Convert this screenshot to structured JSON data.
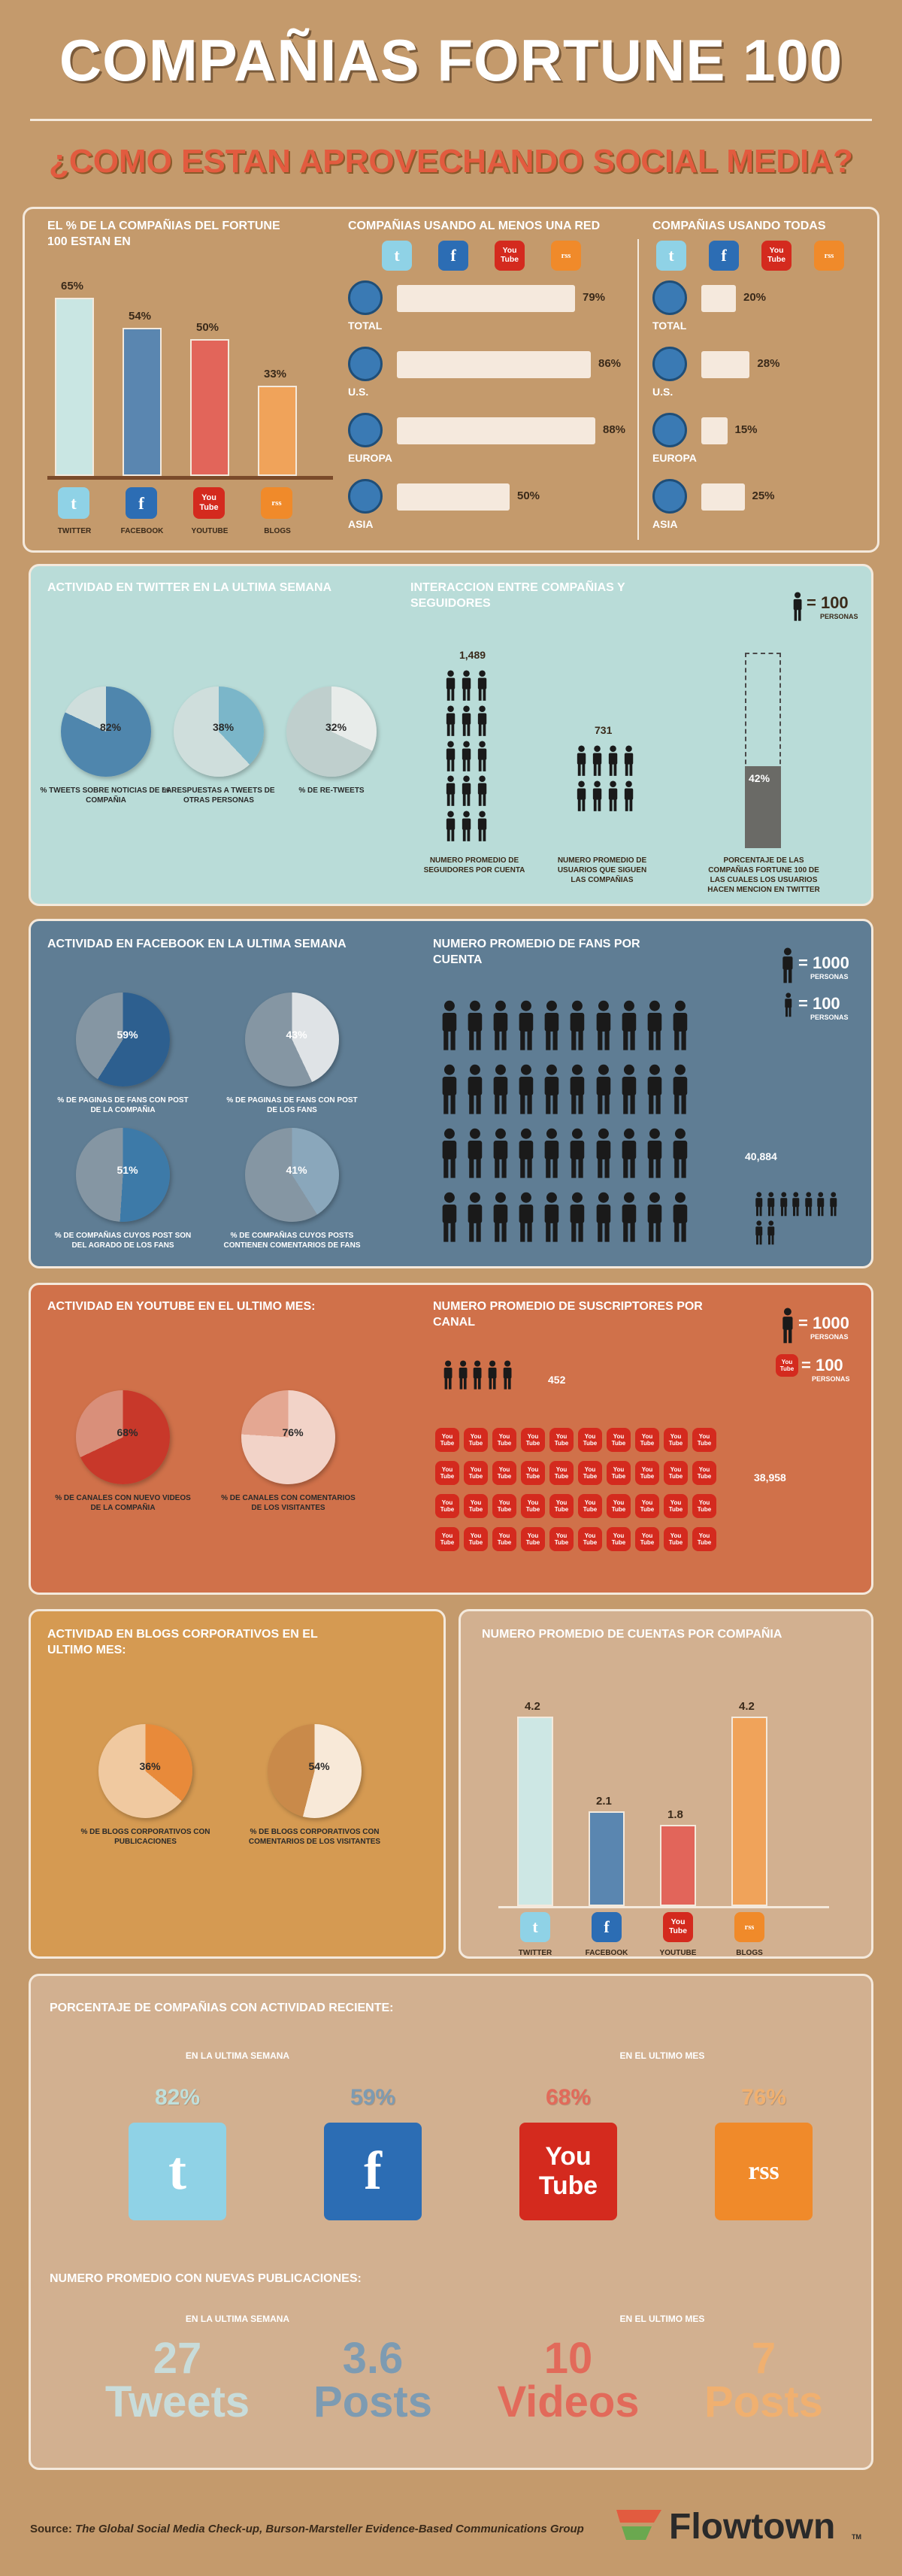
{
  "header": {
    "title": "COMPAÑIAS FORTUNE 100",
    "subtitle": "¿COMO ESTAN APROVECHANDO SOCIAL MEDIA?"
  },
  "colors": {
    "twitter": "#8fd2e6",
    "facebook": "#2c6db4",
    "youtube": "#d42a1e",
    "blogs": "#f08a2a",
    "bg": "#c49a6c"
  },
  "s1": {
    "bar_title": "EL % DE LA COMPAÑIAS DEL FORTUNE 100 ESTAN EN",
    "chart_data": {
      "type": "bar",
      "categories": [
        "TWITTER",
        "FACEBOOK",
        "YOUTUBE",
        "BLOGS"
      ],
      "values": [
        65,
        54,
        50,
        33
      ],
      "labels": [
        "65%",
        "54%",
        "50%",
        "33%"
      ],
      "ylim": [
        0,
        70
      ]
    },
    "mid_title": "COMPAÑIAS USANDO AL MENOS UNA RED",
    "right_title": "COMPAÑIAS USANDO TODAS",
    "regions": [
      "TOTAL",
      "U.S.",
      "EUROPA",
      "ASIA"
    ],
    "atleast": {
      "chart_data": {
        "type": "bar",
        "categories": [
          "TOTAL",
          "U.S.",
          "EUROPA",
          "ASIA"
        ],
        "values": [
          79,
          86,
          88,
          50
        ]
      },
      "labels": [
        "79%",
        "86%",
        "88%",
        "50%"
      ]
    },
    "all": {
      "chart_data": {
        "type": "bar",
        "categories": [
          "TOTAL",
          "U.S.",
          "EUROPA",
          "ASIA"
        ],
        "values": [
          20,
          28,
          15,
          25
        ]
      },
      "labels": [
        "20%",
        "28%",
        "15%",
        "25%"
      ]
    }
  },
  "s2": {
    "title": "ACTIVIDAD EN TWITTER EN LA ULTIMA SEMANA",
    "inter_title": "INTERACCION ENTRE COMPAÑIAS Y SEGUIDORES",
    "legend": "= 100",
    "legend_sub": "PERSONAS",
    "chart_data": {
      "type": "pie",
      "slices": [
        {
          "value": 82,
          "label": "82%",
          "caption": "% TWEETS SOBRE NOTICIAS DE LA COMPAÑIA"
        },
        {
          "value": 38,
          "label": "38%",
          "caption": "% RESPUESTAS A TWEETS DE OTRAS PERSONAS"
        },
        {
          "value": 32,
          "label": "32%",
          "caption": "% DE RE-TWEETS"
        }
      ]
    },
    "followers": {
      "value": "1,489",
      "caption": "NUMERO PROMEDIO DE SEGUIDORES POR CUENTA"
    },
    "following": {
      "value": "731",
      "caption": "NUMERO PROMEDIO DE USUARIOS QUE SIGUEN LAS COMPAÑIAS"
    },
    "mention": {
      "value": "42%",
      "pct": 42,
      "caption": "PORCENTAJE DE LAS COMPAÑIAS FORTUNE 100 DE LAS CUALES LOS USUARIOS HACEN MENCION EN TWITTER"
    }
  },
  "s3": {
    "title": "ACTIVIDAD EN FACEBOOK EN LA ULTIMA SEMANA",
    "fans_title": "NUMERO PROMEDIO DE FANS POR CUENTA",
    "legend1": "= 1000",
    "legend2": "= 100",
    "legend_sub": "PERSONAS",
    "chart_data": {
      "type": "pie",
      "slices": [
        {
          "value": 59,
          "label": "59%",
          "caption": "% DE PAGINAS DE FANS CON POST DE LA COMPAÑIA"
        },
        {
          "value": 43,
          "label": "43%",
          "caption": "% DE PAGINAS DE FANS CON POST DE LOS FANS"
        },
        {
          "value": 51,
          "label": "51%",
          "caption": "% DE COMPAÑIAS CUYOS POST SON DEL AGRADO DE LOS FANS"
        },
        {
          "value": 41,
          "label": "41%",
          "caption": "% DE COMPAÑIAS CUYOS POSTS CONTIENEN COMENTARIOS DE FANS"
        }
      ]
    },
    "fans": "40,884"
  },
  "s4": {
    "title": "ACTIVIDAD EN YOUTUBE EN EL ULTIMO MES:",
    "subs_title": "NUMERO PROMEDIO DE SUSCRIPTORES POR CANAL",
    "legend1": "= 1000",
    "legend2": "= 100",
    "legend_sub": "PERSONAS",
    "chart_data": {
      "type": "pie",
      "slices": [
        {
          "value": 68,
          "label": "68%",
          "caption": "% DE CANALES CON NUEVO VIDEOS DE LA COMPAÑIA"
        },
        {
          "value": 76,
          "label": "76%",
          "caption": "% DE CANALES CON COMENTARIOS DE LOS VISITANTES"
        }
      ]
    },
    "subs": "452",
    "views": "38,958"
  },
  "s5": {
    "title": "ACTIVIDAD EN BLOGS CORPORATIVOS EN EL ULTIMO MES:",
    "chart_data": {
      "type": "pie",
      "slices": [
        {
          "value": 36,
          "label": "36%",
          "caption": "% DE BLOGS CORPORATIVOS CON PUBLICACIONES"
        },
        {
          "value": 54,
          "label": "54%",
          "caption": "% DE BLOGS CORPORATIVOS CON COMENTARIOS DE LOS VISITANTES"
        }
      ]
    }
  },
  "s6": {
    "title": "NUMERO PROMEDIO DE CUENTAS POR COMPAÑIA",
    "chart_data": {
      "type": "bar",
      "categories": [
        "TWITTER",
        "FACEBOOK",
        "YOUTUBE",
        "BLOGS"
      ],
      "values": [
        4.2,
        2.1,
        1.8,
        4.2
      ],
      "labels": [
        "4.2",
        "2.1",
        "1.8",
        "4.2"
      ],
      "ylim": [
        0,
        4.5
      ]
    }
  },
  "s7": {
    "title": "PORCENTAJE DE COMPAÑIAS CON ACTIVIDAD RECIENTE:",
    "week": "EN LA ULTIMA SEMANA",
    "month": "EN EL ULTIMO MES",
    "pcts": [
      "82%",
      "59%",
      "68%",
      "76%"
    ],
    "pub_title": "NUMERO PROMEDIO CON NUEVAS PUBLICACIONES:",
    "nums": [
      "27",
      "3.6",
      "10",
      "7"
    ],
    "units": [
      "Tweets",
      "Posts",
      "Videos",
      "Posts"
    ]
  },
  "icons": {
    "twitter": "t",
    "facebook": "f",
    "youtube": "You Tube",
    "blogs": "rss"
  },
  "footer": {
    "source_prefix": "Source:",
    "source": "The Global Social Media Check-up, Burson-Marsteller Evidence-Based Communications Group",
    "brand": "Flowtown",
    "tm": "TM"
  }
}
